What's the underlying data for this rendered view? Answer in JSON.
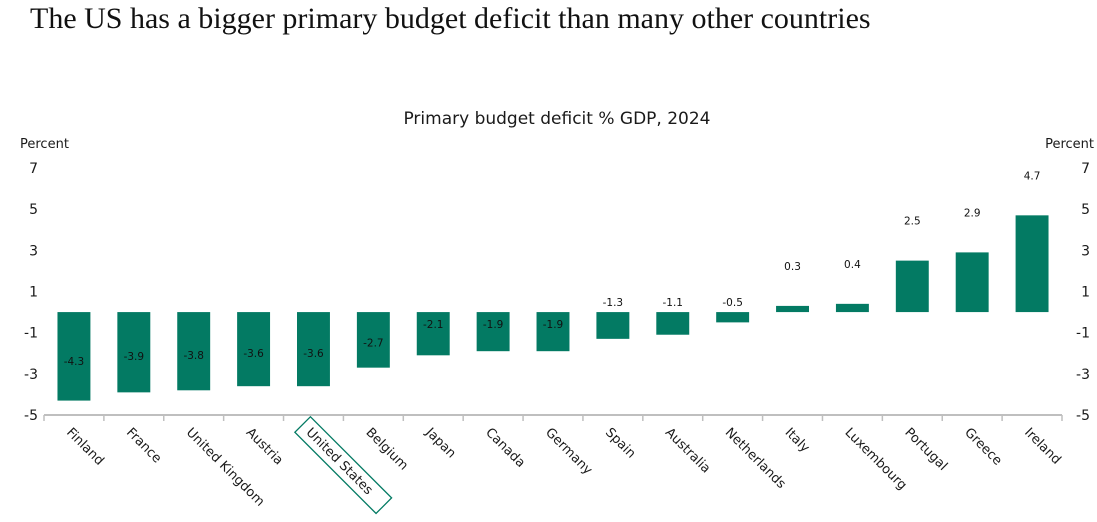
{
  "headline": "The US has a bigger primary budget deficit than many other countries",
  "colors": {
    "bar": "#037a63",
    "axis": "#bfbfbf",
    "highlight_box": "#037a63"
  },
  "chart_data": {
    "type": "bar",
    "title": "Primary budget deficit % GDP, 2024",
    "ylabel_left": "Percent",
    "ylabel_right": "Percent",
    "xlabel": "",
    "ylim": [
      -5,
      7
    ],
    "yticks": [
      7,
      5,
      3,
      1,
      -1,
      -3,
      -5
    ],
    "ytick_labels": [
      "7",
      "5",
      "3",
      "1",
      "-1",
      "-3",
      "-5"
    ],
    "grid": false,
    "legend": "none",
    "highlighted_category": "United States",
    "categories": [
      "Finland",
      "France",
      "United Kingdom",
      "Austria",
      "United States",
      "Belgium",
      "Japan",
      "Canada",
      "Germany",
      "Spain",
      "Australia",
      "Netherlands",
      "Italy",
      "Luxembourg",
      "Portugal",
      "Greece",
      "Ireland"
    ],
    "values": [
      -4.3,
      -3.9,
      -3.8,
      -3.6,
      -3.6,
      -2.7,
      -2.1,
      -1.9,
      -1.9,
      -1.3,
      -1.1,
      -0.5,
      0.3,
      0.4,
      2.5,
      2.9,
      4.7
    ],
    "data_labels": [
      "-4.3",
      "-3.9",
      "-3.8",
      "-3.6",
      "-3.6",
      "-2.7",
      "-2.1",
      "-1.9",
      "-1.9",
      "-1.3",
      "-1.1",
      "-0.5",
      "0.3",
      "0.4",
      "2.5",
      "2.9",
      "4.7"
    ]
  }
}
